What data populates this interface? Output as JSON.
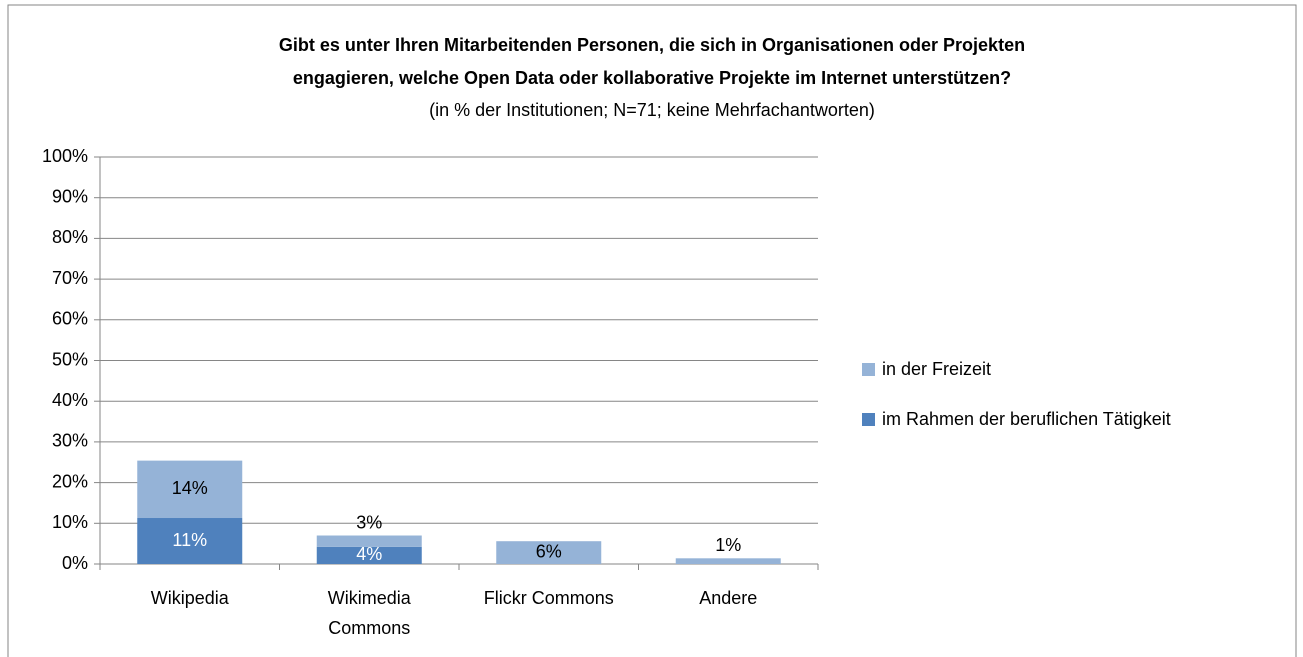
{
  "chart_data": {
    "type": "stacked_bar",
    "title": [
      "Gibt es unter Ihren Mitarbeitenden Personen, die sich in Organisationen oder Projekten",
      "engagieren, welche Open Data oder kollaborative Projekte im Internet unterstützen?"
    ],
    "subtitle": "(in % der Institutionen; N=71; keine Mehrfachantworten)",
    "categories": [
      "Wikipedia",
      "Wikimedia|Commons",
      "Flickr Commons",
      "Andere"
    ],
    "series": [
      {
        "name": "im Rahmen der beruflichen Tätigkeit",
        "color": "#4f81bd",
        "values": [
          11.3,
          4.2,
          null,
          null
        ],
        "value_labels": [
          "11%",
          "4%",
          null,
          null
        ]
      },
      {
        "name": "in der Freizeit",
        "color": "#95b3d7",
        "values": [
          14.1,
          2.8,
          5.6,
          1.4
        ],
        "value_labels": [
          "14%",
          "3%",
          "6%",
          "1%"
        ]
      }
    ],
    "ylim": [
      0,
      100
    ],
    "yticks": [
      {
        "value": 0,
        "label": "0%"
      },
      {
        "value": 10,
        "label": "10%"
      },
      {
        "value": 20,
        "label": "20%"
      },
      {
        "value": 30,
        "label": "30%"
      },
      {
        "value": 40,
        "label": "40%"
      },
      {
        "value": 50,
        "label": "50%"
      },
      {
        "value": 60,
        "label": "60%"
      },
      {
        "value": 70,
        "label": "70%"
      },
      {
        "value": 80,
        "label": "80%"
      },
      {
        "value": 90,
        "label": "90%"
      },
      {
        "value": 100,
        "label": "100%"
      }
    ],
    "grid": true,
    "legend": "right"
  }
}
